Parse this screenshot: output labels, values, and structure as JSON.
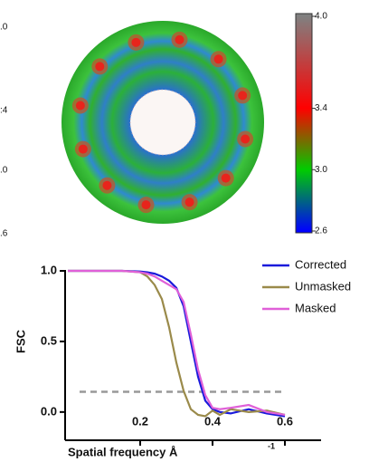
{
  "edge_fragments": [
    ".0",
    ":4",
    ".0",
    ".6"
  ],
  "colorbar": {
    "lim": [
      2.6,
      4.0
    ],
    "ticks": [
      2.6,
      {
        "value": 3.0,
        "label": "3.0"
      },
      3.4,
      {
        "value": 4.0,
        "label": "4.0"
      }
    ],
    "colors": [
      "#0000ff",
      "#00cc00",
      "#ff0000",
      "#808080"
    ]
  },
  "chart_data": {
    "type": "line",
    "ylabel": "FSC",
    "xlabel": "Spatial frequency Å",
    "xlabel_superscript": "-1",
    "x": [
      0,
      0.05,
      0.1,
      0.15,
      0.2,
      0.22,
      0.24,
      0.26,
      0.28,
      0.3,
      0.32,
      0.34,
      0.36,
      0.38,
      0.4,
      0.42,
      0.45,
      0.5,
      0.55,
      0.6
    ],
    "series": [
      {
        "name": "Corrected",
        "color": "#1a1adb",
        "values": [
          1,
          1,
          1,
          1,
          0.995,
          0.99,
          0.98,
          0.96,
          0.93,
          0.88,
          0.75,
          0.5,
          0.25,
          0.08,
          0.02,
          0.0,
          -0.01,
          0.02,
          -0.01,
          -0.03
        ]
      },
      {
        "name": "Unmasked",
        "color": "#9a8a4a",
        "values": [
          1,
          1,
          1,
          1,
          0.99,
          0.96,
          0.9,
          0.8,
          0.6,
          0.35,
          0.15,
          0.02,
          -0.02,
          -0.03,
          0.01,
          -0.02,
          0.02,
          0.0,
          0.01,
          -0.02
        ]
      },
      {
        "name": "Masked",
        "color": "#e060d8",
        "values": [
          1,
          1,
          1,
          1,
          0.99,
          0.98,
          0.96,
          0.93,
          0.9,
          0.87,
          0.78,
          0.55,
          0.3,
          0.12,
          0.03,
          0.02,
          0.03,
          0.05,
          0.0,
          -0.02
        ]
      }
    ],
    "threshold": 0.143,
    "threshold_color": "#999999",
    "xlim": [
      0,
      0.7
    ],
    "ylim": [
      -0.2,
      1.0
    ],
    "xticks": [
      0.2,
      0.4,
      0.6
    ],
    "yticks": [
      {
        "value": 0.0,
        "label": "0.0"
      },
      {
        "value": 0.5,
        "label": "0.5"
      },
      {
        "value": 1.0,
        "label": "1.0"
      }
    ],
    "legend": "top-right"
  }
}
